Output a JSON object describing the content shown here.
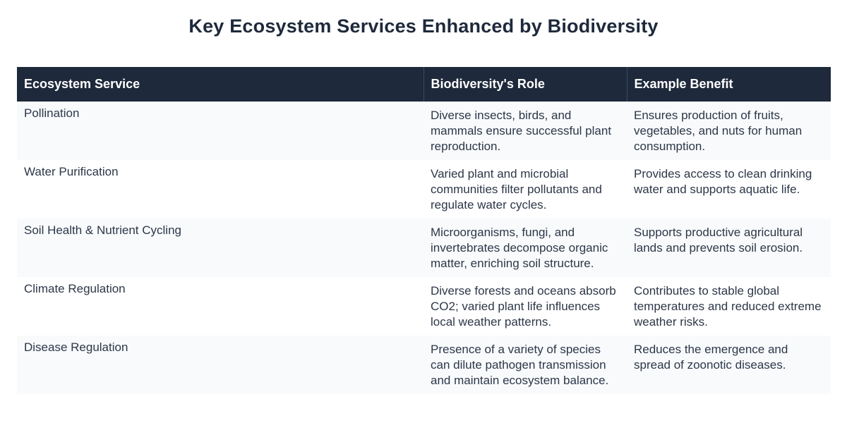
{
  "title": "Key Ecosystem Services Enhanced by Biodiversity",
  "table": {
    "headers": [
      "Ecosystem Service",
      "Biodiversity's Role",
      "Example Benefit"
    ],
    "rows": [
      {
        "service": "Pollination",
        "role": "Diverse insects, birds, and mammals ensure successful plant reproduction.",
        "benefit": "Ensures production of fruits, vegetables, and nuts for human consumption."
      },
      {
        "service": "Water Purification",
        "role": "Varied plant and microbial communities filter pollutants and regulate water cycles.",
        "benefit": "Provides access to clean drinking water and supports aquatic life."
      },
      {
        "service": "Soil Health & Nutrient Cycling",
        "role": "Microorganisms, fungi, and invertebrates decompose organic matter, enriching soil structure.",
        "benefit": "Supports productive agricultural lands and prevents soil erosion."
      },
      {
        "service": "Climate Regulation",
        "role": "Diverse forests and oceans absorb CO2; varied plant life influences local weather patterns.",
        "benefit": "Contributes to stable global temperatures and reduced extreme weather risks."
      },
      {
        "service": "Disease Regulation",
        "role": "Presence of a variety of species can dilute pathogen transmission and maintain ecosystem balance.",
        "benefit": "Reduces the emergence and spread of zoonotic diseases."
      }
    ]
  },
  "colors": {
    "header_bg": "#1e293b",
    "row_alt": "#f8fafc",
    "text": "#2d3748"
  }
}
